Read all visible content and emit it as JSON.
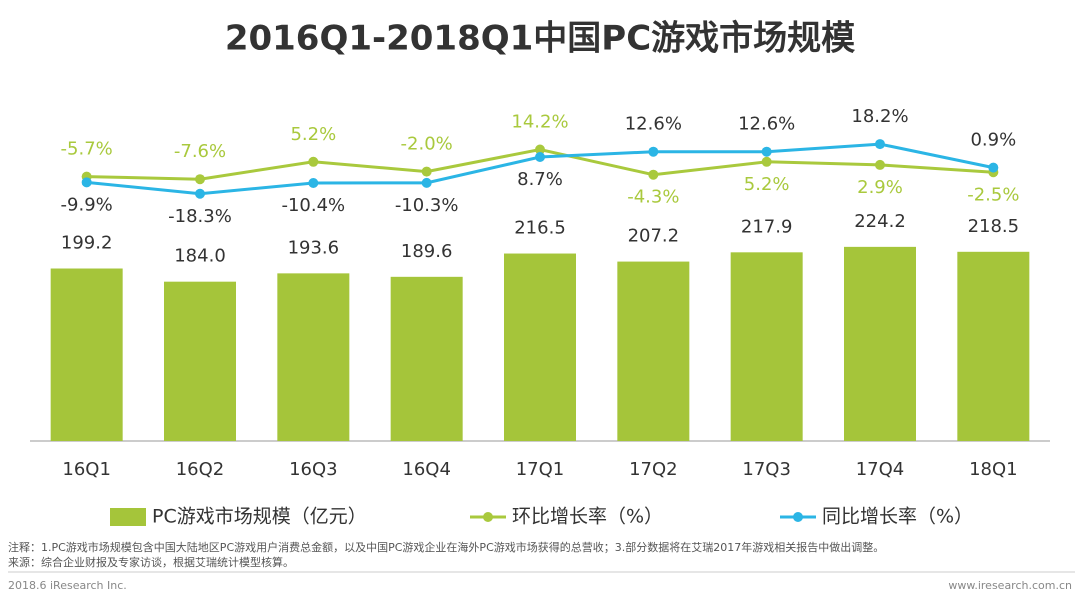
{
  "chart_data": {
    "type": "bar-line",
    "title": "2016Q1-2018Q1中国PC游戏市场规模",
    "categories": [
      "16Q1",
      "16Q2",
      "16Q3",
      "16Q4",
      "17Q1",
      "17Q2",
      "17Q3",
      "17Q4",
      "18Q1"
    ],
    "series": [
      {
        "name": "PC游戏市场规模（亿元）",
        "type": "bar",
        "color": "#a5c53a",
        "values": [
          199.2,
          184.0,
          193.6,
          189.6,
          216.5,
          207.2,
          217.9,
          224.2,
          218.5
        ],
        "value_labels": [
          "199.2",
          "184.0",
          "193.6",
          "189.6",
          "216.5",
          "207.2",
          "217.9",
          "224.2",
          "218.5"
        ]
      },
      {
        "name": "环比增长率（%）",
        "type": "line",
        "axis": "y2",
        "color": "#a9c93d",
        "label_color": "#a9c93d",
        "values": [
          -5.7,
          -7.6,
          5.2,
          -2.0,
          14.2,
          -4.3,
          5.2,
          2.9,
          -2.5
        ],
        "value_labels": [
          "-5.7%",
          "-7.6%",
          "5.2%",
          "-2.0%",
          "14.2%",
          "-4.3%",
          "5.2%",
          "2.9%",
          "-2.5%"
        ]
      },
      {
        "name": "同比增长率（%）",
        "type": "line",
        "axis": "y2",
        "color": "#2bb5e5",
        "label_color": "#333333",
        "values": [
          -9.9,
          -18.3,
          -10.4,
          -10.3,
          8.7,
          12.6,
          12.6,
          18.2,
          0.9
        ],
        "value_labels": [
          "-9.9%",
          "-18.3%",
          "-10.4%",
          "-10.3%",
          "8.7%",
          "12.6%",
          "12.6%",
          "18.2%",
          "0.9%"
        ]
      }
    ],
    "ylim": [
      0,
      440
    ],
    "y2lim": [
      -200,
      80
    ],
    "notes": [
      "注释：1.PC游戏市场规模包含中国大陆地区PC游戏用户消费总金额，以及中国PC游戏企业在海外PC游戏市场获得的总营收；3.部分数据将在艾瑞2017年游戏相关报告中做出调整。",
      "来源：综合企业财报及专家访谈，根据艾瑞统计模型核算。"
    ],
    "footer_left": "2018.6 iResearch Inc.",
    "footer_right": "www.iresearch.com.cn"
  }
}
